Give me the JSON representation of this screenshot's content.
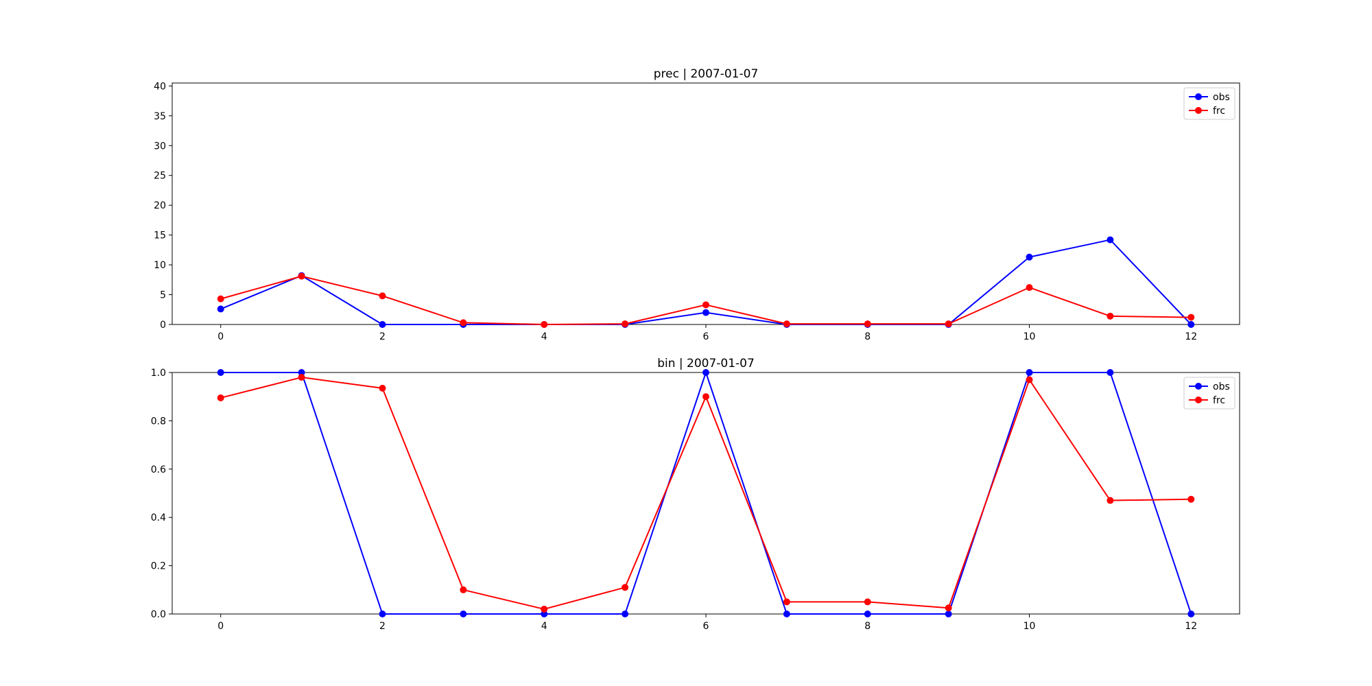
{
  "chart_data": [
    {
      "type": "line",
      "title": "prec | 2007-01-07",
      "xlabel": "",
      "ylabel": "",
      "xlim": [
        -0.6,
        12.6
      ],
      "ylim": [
        0,
        40.5
      ],
      "xticks": [
        "0",
        "2",
        "4",
        "6",
        "8",
        "10",
        "12"
      ],
      "yticks": [
        "0",
        "5",
        "10",
        "15",
        "20",
        "25",
        "30",
        "35",
        "40"
      ],
      "grid": false,
      "legend": "top-right",
      "x": [
        0,
        1,
        2,
        3,
        4,
        5,
        6,
        7,
        8,
        9,
        10,
        11,
        12
      ],
      "series": [
        {
          "name": "obs",
          "color": "#0000ff",
          "values": [
            2.6,
            8.2,
            0.0,
            0.0,
            0.0,
            0.0,
            2.0,
            0.0,
            0.0,
            0.0,
            11.3,
            14.2,
            0.0
          ]
        },
        {
          "name": "frc",
          "color": "#ff0000",
          "values": [
            4.3,
            8.1,
            4.8,
            0.3,
            0.0,
            0.1,
            3.3,
            0.1,
            0.1,
            0.1,
            6.2,
            1.4,
            1.2
          ]
        }
      ]
    },
    {
      "type": "line",
      "title": "bin | 2007-01-07",
      "xlabel": "",
      "ylabel": "",
      "xlim": [
        -0.6,
        12.6
      ],
      "ylim": [
        0,
        1.0
      ],
      "xticks": [
        "0",
        "2",
        "4",
        "6",
        "8",
        "10",
        "12"
      ],
      "yticks": [
        "0.0",
        "0.2",
        "0.4",
        "0.6",
        "0.8",
        "1.0"
      ],
      "grid": false,
      "legend": "top-right",
      "x": [
        0,
        1,
        2,
        3,
        4,
        5,
        6,
        7,
        8,
        9,
        10,
        11,
        12
      ],
      "series": [
        {
          "name": "obs",
          "color": "#0000ff",
          "values": [
            1.0,
            1.0,
            0.0,
            0.0,
            0.0,
            0.0,
            1.0,
            0.0,
            0.0,
            0.0,
            1.0,
            1.0,
            0.0
          ]
        },
        {
          "name": "frc",
          "color": "#ff0000",
          "values": [
            0.895,
            0.98,
            0.935,
            0.1,
            0.02,
            0.11,
            0.9,
            0.05,
            0.05,
            0.025,
            0.97,
            0.47,
            0.475
          ]
        }
      ]
    }
  ]
}
